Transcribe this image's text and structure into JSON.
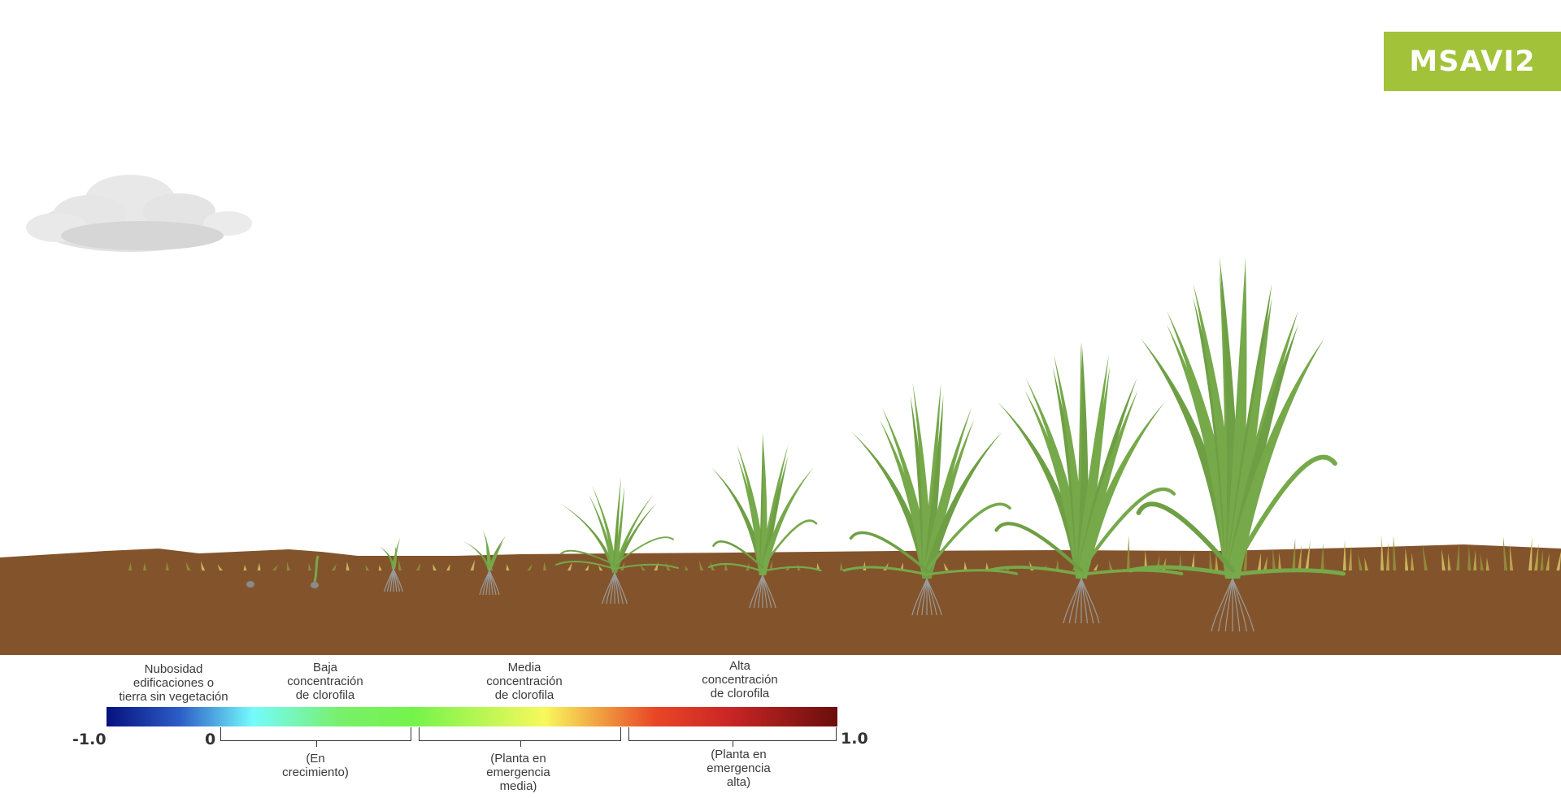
{
  "badge": {
    "title": "MSAVI2",
    "color": "#a2c23a"
  },
  "colors": {
    "soil": "#83542b",
    "plant": "#76a94a",
    "dry_grass": "#c9b65e",
    "root": "#9a9a9a",
    "cloud": "#dedede"
  },
  "scale": {
    "min_label": "-1.0",
    "zero_label": "0",
    "max_label": "1.0",
    "gradient_stops": [
      "#06117e",
      "#2c5dc7",
      "#74fbfd",
      "#78f06a",
      "#74f44a",
      "#f8f85c",
      "#e94626",
      "#cb2626",
      "#6a0e0c"
    ]
  },
  "top_labels": [
    {
      "lines": [
        "Nubosidad",
        "edificaciones o",
        "tierra sin vegetación"
      ]
    },
    {
      "lines": [
        "Baja",
        "concentración",
        "de clorofila"
      ]
    },
    {
      "lines": [
        "Media",
        "concentración",
        "de clorofila"
      ]
    },
    {
      "lines": [
        "Alta",
        "concentración",
        "de clorofila"
      ]
    }
  ],
  "bottom_labels": [
    {
      "lines": [
        "(En",
        "crecimiento)"
      ]
    },
    {
      "lines": [
        "(Planta en",
        "emergencia",
        "media)"
      ]
    },
    {
      "lines": [
        "(Planta en",
        "emergencia",
        "alta)"
      ]
    }
  ],
  "scene": {
    "icons": [
      "cloud-icon",
      "seed-icon",
      "sprout-icon",
      "grass-plant-icon",
      "dry-grass-icon"
    ]
  }
}
